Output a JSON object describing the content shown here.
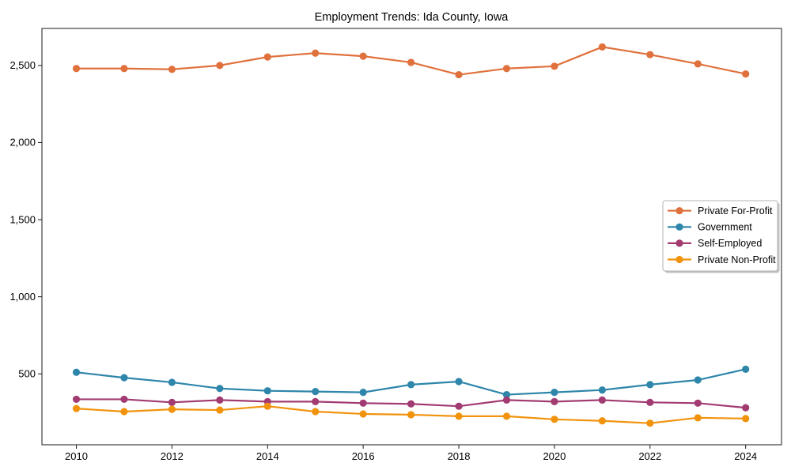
{
  "chart_data": {
    "type": "line",
    "title": "Employment Trends: Ida County, Iowa",
    "xlabel": "",
    "ylabel": "",
    "x": [
      2010,
      2011,
      2012,
      2013,
      2014,
      2015,
      2016,
      2017,
      2018,
      2019,
      2020,
      2021,
      2022,
      2023,
      2024
    ],
    "series": [
      {
        "name": "Private For-Profit",
        "color": "#e0713c",
        "values": [
          2480,
          2480,
          2475,
          2500,
          2555,
          2580,
          2560,
          2520,
          2440,
          2480,
          2495,
          2620,
          2570,
          2510,
          2445
        ]
      },
      {
        "name": "Government",
        "color": "#2e86ab",
        "values": [
          510,
          475,
          445,
          405,
          390,
          385,
          380,
          430,
          450,
          365,
          380,
          395,
          430,
          460,
          530
        ]
      },
      {
        "name": "Self-Employed",
        "color": "#a23b72",
        "values": [
          335,
          335,
          315,
          330,
          320,
          320,
          310,
          305,
          290,
          330,
          320,
          330,
          315,
          310,
          280
        ]
      },
      {
        "name": "Private Non-Profit",
        "color": "#f1930d",
        "values": [
          275,
          255,
          270,
          265,
          290,
          255,
          240,
          235,
          225,
          225,
          205,
          195,
          180,
          215,
          210
        ]
      }
    ],
    "x_ticks": [
      2010,
      2012,
      2014,
      2016,
      2018,
      2020,
      2022,
      2024
    ],
    "x_tick_labels": [
      "2010",
      "2012",
      "2014",
      "2016",
      "2018",
      "2020",
      "2022",
      "2024"
    ],
    "y_ticks": [
      500,
      1000,
      1500,
      2000,
      2500
    ],
    "y_tick_labels": [
      "500",
      "1,000",
      "1,500",
      "2,000",
      "2,500"
    ],
    "xlim": [
      2009.28,
      2024.75
    ],
    "ylim": [
      40,
      2740
    ],
    "grid": false,
    "legend": {
      "position": "center right",
      "frame": true,
      "shadow": true,
      "entries": [
        "Private For-Profit",
        "Government",
        "Self-Employed",
        "Private Non-Profit"
      ]
    },
    "style": {
      "background_color": "#ffffff",
      "spine_color": "#1a1a1a",
      "text_color": "#000000",
      "legend_border_color": "#b3b3b3",
      "legend_shadow_color": "#c2c2c2",
      "line_width": 2.2,
      "marker_radius": 4.6
    }
  }
}
